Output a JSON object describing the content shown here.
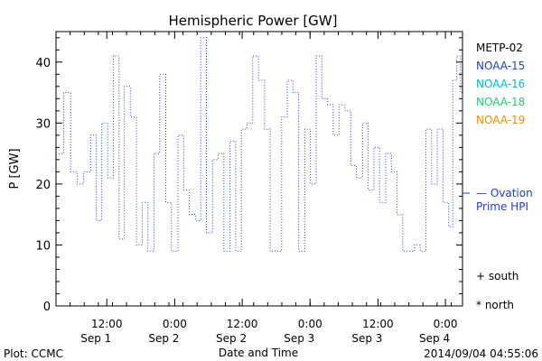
{
  "chart_data": {
    "type": "line",
    "title": "Hemispheric Power [GW]",
    "ylabel": "P [GW]",
    "xlabel": "Date and Time",
    "ylim": [
      0,
      45
    ],
    "yticks": [
      0,
      10,
      20,
      30,
      40
    ],
    "xlim": [
      0,
      1
    ],
    "grid": false,
    "xticks": [
      {
        "pos": 0.125,
        "line1": "12:00",
        "line2": "Sep 1"
      },
      {
        "pos": 0.292,
        "line1": "0:00",
        "line2": "Sep 2"
      },
      {
        "pos": 0.458,
        "line1": "12:00",
        "line2": "Sep 2"
      },
      {
        "pos": 0.625,
        "line1": "0:00",
        "line2": "Sep 3"
      },
      {
        "pos": 0.792,
        "line1": "12:00",
        "line2": "Sep 3"
      },
      {
        "pos": 0.958,
        "line1": "0:00",
        "line2": "Sep 4"
      }
    ],
    "legend": {
      "placement": "right",
      "entries": [
        {
          "name": "METP-02",
          "color": "#000000"
        },
        {
          "name": "NOAA-15",
          "color": "#1f3fd0"
        },
        {
          "name": "NOAA-16",
          "color": "#00b8d8"
        },
        {
          "name": "NOAA-18",
          "color": "#20d070"
        },
        {
          "name": "NOAA-19",
          "color": "#f08c00"
        }
      ],
      "ovation": {
        "line1": "— Ovation",
        "line2": "Prime HPI",
        "color": "#1f3fd0",
        "value": 18.5
      },
      "markers": [
        {
          "symbol": "+",
          "label": "south"
        },
        {
          "symbol": "*",
          "label": "north"
        }
      ]
    },
    "series": [
      {
        "color": "#1f3fd0",
        "style": "dotted-step",
        "x": [
          0.0,
          0.022,
          0.042,
          0.056,
          0.075,
          0.094,
          0.113,
          0.132,
          0.151,
          0.169,
          0.189,
          0.207,
          0.226,
          0.245,
          0.264,
          0.283,
          0.302,
          0.321,
          0.34,
          0.358,
          0.377,
          0.396,
          0.415,
          0.434,
          0.453,
          0.472,
          0.491,
          0.509,
          0.528,
          0.547,
          0.566,
          0.585,
          0.604,
          0.623,
          0.642,
          0.66,
          0.679,
          0.698,
          0.717,
          0.736,
          0.755,
          0.774,
          0.792,
          0.811,
          0.83,
          0.849,
          0.868,
          0.887,
          0.906,
          0.925,
          0.943,
          0.962,
          0.981,
          1.0
        ],
        "y": [
          25,
          35,
          22,
          20,
          22,
          28,
          14,
          30,
          21,
          41,
          11,
          36,
          31,
          10,
          17,
          9,
          25,
          38,
          17,
          9,
          28,
          19,
          15,
          14,
          44,
          12,
          24,
          25,
          9,
          27,
          9,
          29,
          30,
          41,
          37,
          29,
          9,
          9,
          31,
          37,
          35,
          9,
          29,
          20,
          41,
          34,
          33,
          28,
          33,
          32,
          23,
          21,
          30,
          28
        ],
        "tail": [
          [
            0.0,
            25
          ],
          [
            0.019,
            25
          ],
          [
            0.019,
            35
          ],
          [
            0.036,
            35
          ],
          [
            0.036,
            22
          ],
          [
            0.052,
            22
          ],
          [
            0.052,
            20
          ],
          [
            0.068,
            20
          ],
          [
            0.068,
            22
          ],
          [
            0.085,
            22
          ],
          [
            0.085,
            28
          ],
          [
            0.099,
            28
          ],
          [
            0.099,
            14
          ],
          [
            0.112,
            14
          ],
          [
            0.112,
            30
          ],
          [
            0.127,
            30
          ],
          [
            0.127,
            21
          ],
          [
            0.141,
            21
          ],
          [
            0.141,
            41
          ],
          [
            0.155,
            41
          ],
          [
            0.155,
            11
          ],
          [
            0.168,
            11
          ],
          [
            0.168,
            36
          ],
          [
            0.183,
            36
          ],
          [
            0.183,
            31
          ],
          [
            0.198,
            31
          ],
          [
            0.198,
            10
          ],
          [
            0.212,
            10
          ],
          [
            0.212,
            17
          ],
          [
            0.226,
            17
          ],
          [
            0.226,
            9
          ],
          [
            0.241,
            9
          ],
          [
            0.241,
            25
          ],
          [
            0.255,
            25
          ],
          [
            0.255,
            38
          ],
          [
            0.27,
            38
          ],
          [
            0.27,
            17
          ],
          [
            0.284,
            17
          ],
          [
            0.284,
            9
          ],
          [
            0.3,
            9
          ],
          [
            0.3,
            28
          ],
          [
            0.314,
            28
          ],
          [
            0.314,
            19
          ],
          [
            0.328,
            19
          ],
          [
            0.328,
            15
          ],
          [
            0.343,
            15
          ],
          [
            0.343,
            14
          ],
          [
            0.356,
            14
          ],
          [
            0.356,
            44
          ],
          [
            0.37,
            44
          ],
          [
            0.37,
            12
          ],
          [
            0.385,
            12
          ],
          [
            0.385,
            24
          ],
          [
            0.399,
            24
          ],
          [
            0.399,
            25
          ],
          [
            0.413,
            25
          ],
          [
            0.413,
            9
          ],
          [
            0.428,
            9
          ],
          [
            0.428,
            27
          ],
          [
            0.442,
            27
          ],
          [
            0.442,
            9
          ],
          [
            0.456,
            9
          ],
          [
            0.456,
            29
          ],
          [
            0.47,
            29
          ],
          [
            0.47,
            30
          ],
          [
            0.484,
            30
          ],
          [
            0.484,
            41
          ],
          [
            0.498,
            41
          ],
          [
            0.498,
            37
          ],
          [
            0.513,
            37
          ],
          [
            0.513,
            29
          ],
          [
            0.527,
            29
          ],
          [
            0.527,
            9
          ],
          [
            0.555,
            9
          ],
          [
            0.555,
            31
          ],
          [
            0.569,
            31
          ],
          [
            0.569,
            37
          ],
          [
            0.583,
            37
          ],
          [
            0.583,
            35
          ],
          [
            0.597,
            35
          ],
          [
            0.597,
            9
          ],
          [
            0.612,
            9
          ],
          [
            0.612,
            29
          ],
          [
            0.626,
            29
          ],
          [
            0.626,
            20
          ],
          [
            0.64,
            20
          ],
          [
            0.64,
            41
          ],
          [
            0.654,
            41
          ],
          [
            0.654,
            34
          ],
          [
            0.668,
            34
          ],
          [
            0.668,
            33
          ],
          [
            0.682,
            33
          ],
          [
            0.682,
            28
          ],
          [
            0.697,
            28
          ],
          [
            0.697,
            33
          ],
          [
            0.711,
            33
          ],
          [
            0.711,
            32
          ],
          [
            0.725,
            32
          ],
          [
            0.725,
            23
          ],
          [
            0.739,
            23
          ],
          [
            0.739,
            21
          ],
          [
            0.754,
            21
          ],
          [
            0.754,
            30
          ],
          [
            0.768,
            30
          ],
          [
            0.768,
            19
          ],
          [
            0.782,
            19
          ],
          [
            0.782,
            26
          ],
          [
            0.796,
            26
          ],
          [
            0.796,
            17
          ],
          [
            0.811,
            17
          ],
          [
            0.811,
            25
          ],
          [
            0.825,
            25
          ],
          [
            0.825,
            22
          ],
          [
            0.839,
            22
          ],
          [
            0.839,
            15
          ],
          [
            0.853,
            15
          ],
          [
            0.853,
            9
          ],
          [
            0.882,
            9
          ],
          [
            0.882,
            10
          ],
          [
            0.896,
            10
          ],
          [
            0.896,
            9
          ],
          [
            0.91,
            9
          ],
          [
            0.91,
            29
          ],
          [
            0.924,
            29
          ],
          [
            0.924,
            20
          ],
          [
            0.938,
            20
          ],
          [
            0.938,
            29
          ],
          [
            0.952,
            29
          ],
          [
            0.952,
            17
          ],
          [
            0.966,
            17
          ],
          [
            0.966,
            13
          ],
          [
            0.976,
            13
          ],
          [
            0.976,
            37
          ],
          [
            0.986,
            37
          ],
          [
            0.986,
            41
          ],
          [
            0.995,
            41
          ],
          [
            0.995,
            35
          ],
          [
            1.005,
            35
          ],
          [
            1.005,
            28
          ],
          [
            1.01,
            28
          ]
        ]
      }
    ]
  },
  "footer": {
    "left": "Plot: CCMC",
    "right": "2014/09/04 04:55:06"
  }
}
